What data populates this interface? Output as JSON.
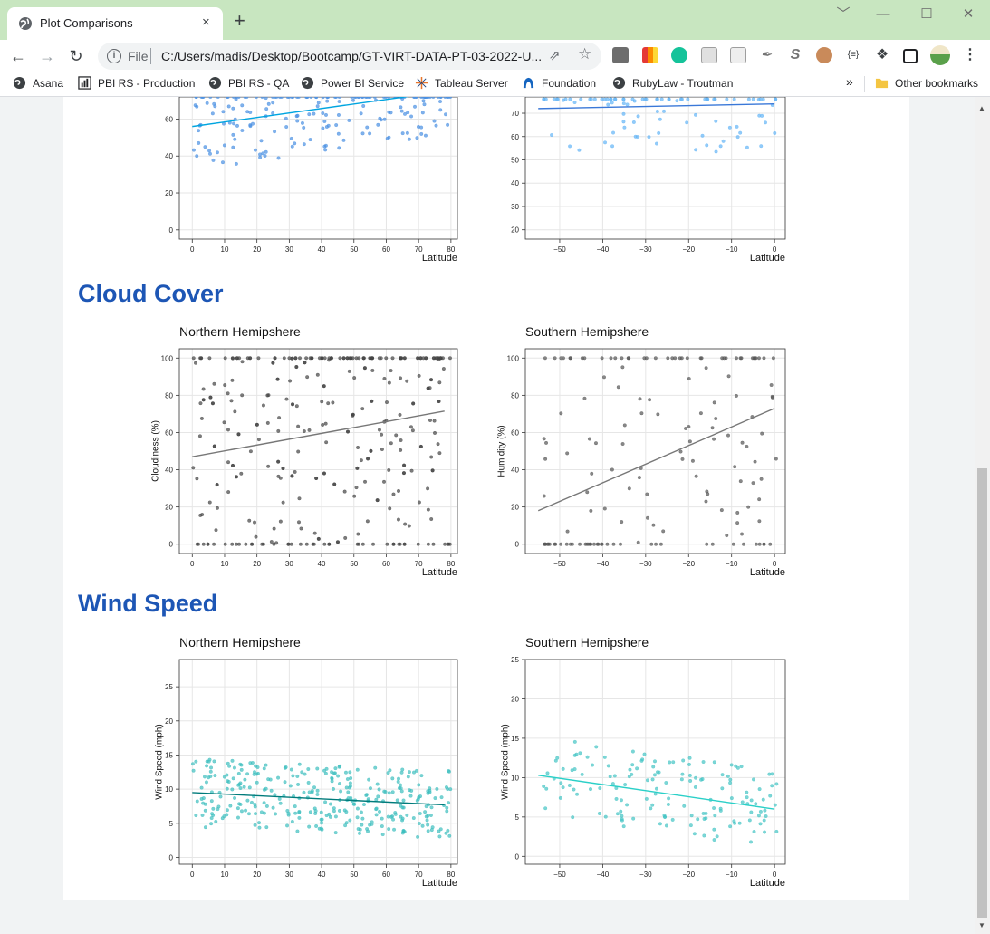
{
  "browser": {
    "tab_title": "Plot Comparisons",
    "tab_close": "×",
    "new_tab": "+",
    "window_controls": [
      "﹀",
      "—",
      "☐",
      "✕"
    ],
    "url_scheme": "File",
    "url": "C:/Users/madis/Desktop/Bootcamp/GT-VIRT-DATA-PT-03-2022-U...",
    "bookmarks": [
      "Asana",
      "PBI RS - Production",
      "PBI RS - QA",
      "Power BI Service",
      "Tableau Server",
      "Foundation",
      "RubyLaw - Troutman"
    ],
    "bookmarks_more": "»",
    "other_bookmarks": "Other bookmarks",
    "icons": [
      "back-icon",
      "forward-icon",
      "reload-icon",
      "info-icon",
      "share-icon",
      "star-icon",
      "extensions-icon",
      "side-panel-icon",
      "menu-icon"
    ]
  },
  "sections": {
    "cloud": "Cloud Cover",
    "wind": "Wind Speed"
  },
  "plot_titles": {
    "cloud_north": "Northern Hemipshere",
    "cloud_south": "Southern Hemipshere",
    "wind_north": "Northern Hemipshere",
    "wind_south": "Southern Hemipshere"
  },
  "chart_data": [
    {
      "id": "humidity_north",
      "type": "scatter",
      "title": "",
      "xlabel": "Latitude",
      "ylabel": "",
      "xlim": [
        -4,
        82
      ],
      "ylim": [
        -5,
        72
      ],
      "xticks": [
        0,
        10,
        20,
        30,
        40,
        50,
        60,
        70,
        80
      ],
      "yticks": [
        0,
        20,
        40,
        60
      ],
      "point_color": "#4a90e2",
      "line_color": "#00a5e0",
      "regression": {
        "x": [
          0,
          78
        ],
        "y": [
          56,
          75
        ]
      },
      "seed": 11,
      "n": 210,
      "ymin": 0,
      "ymax": 72,
      "spread": 24
    },
    {
      "id": "humidity_south",
      "type": "scatter",
      "title": "",
      "xlabel": "Latitude",
      "ylabel": "",
      "xlim": [
        -58,
        2.5
      ],
      "ylim": [
        16,
        77
      ],
      "xticks": [
        -50,
        -40,
        -30,
        -20,
        -10,
        0
      ],
      "yticks": [
        20,
        30,
        40,
        50,
        60,
        70
      ],
      "point_color": "#64b5f6",
      "line_color": "#3a78d8",
      "regression": {
        "x": [
          -55,
          0
        ],
        "y": [
          72,
          74
        ]
      },
      "seed": 23,
      "n": 95,
      "ymin": 18,
      "ymax": 76,
      "spread": 20
    },
    {
      "id": "cloud_north",
      "type": "scatter",
      "title": "Northern Hemipshere",
      "xlabel": "Latitude",
      "ylabel": "Cloudiness (%)",
      "xlim": [
        -4,
        82
      ],
      "ylim": [
        -5,
        105
      ],
      "xticks": [
        0,
        10,
        20,
        30,
        40,
        50,
        60,
        70,
        80
      ],
      "yticks": [
        0,
        20,
        40,
        60,
        80,
        100
      ],
      "point_color": "#444444",
      "line_color": "#777777",
      "regression": {
        "x": [
          0,
          78
        ],
        "y": [
          47,
          71.5
        ]
      },
      "seed": 37,
      "n": 330,
      "ymin": 0,
      "ymax": 100,
      "spread": 60
    },
    {
      "id": "cloud_south",
      "type": "scatter",
      "title": "Southern Hemipshere",
      "xlabel": "Latitude",
      "ylabel": "Humidity (%)",
      "xlim": [
        -58,
        2.5
      ],
      "ylim": [
        -5,
        105
      ],
      "xticks": [
        -50,
        -40,
        -30,
        -20,
        -10,
        0
      ],
      "yticks": [
        0,
        20,
        40,
        60,
        80,
        100
      ],
      "point_color": "#555555",
      "line_color": "#777777",
      "regression": {
        "x": [
          -55,
          0
        ],
        "y": [
          18,
          73
        ]
      },
      "seed": 53,
      "n": 150,
      "ymin": 0,
      "ymax": 100,
      "spread": 60
    },
    {
      "id": "wind_north",
      "type": "scatter",
      "title": "Northern Hemipshere",
      "xlabel": "Latitude",
      "ylabel": "Wind Speed (mph)",
      "xlim": [
        -4,
        82
      ],
      "ylim": [
        -1,
        29
      ],
      "xticks": [
        0,
        10,
        20,
        30,
        40,
        50,
        60,
        70,
        80
      ],
      "yticks": [
        0,
        5,
        10,
        15,
        20,
        25
      ],
      "point_color": "#3fbfbf",
      "line_color": "#007b7b",
      "regression": {
        "x": [
          0,
          78
        ],
        "y": [
          9.5,
          7.7
        ]
      },
      "seed": 71,
      "n": 330,
      "ymin": 0,
      "ymax": 27.5,
      "spread": 5
    },
    {
      "id": "wind_south",
      "type": "scatter",
      "title": "Southern Hemipshere",
      "xlabel": "Latitude",
      "ylabel": "Wind Speed (mph)",
      "xlim": [
        -58,
        2.5
      ],
      "ylim": [
        -1,
        25
      ],
      "xticks": [
        -50,
        -40,
        -30,
        -20,
        -10,
        0
      ],
      "yticks": [
        0,
        5,
        10,
        15,
        20,
        25
      ],
      "point_color": "#44c4c4",
      "line_color": "#2ad0c8",
      "regression": {
        "x": [
          -55,
          0
        ],
        "y": [
          10.3,
          6.0
        ]
      },
      "seed": 89,
      "n": 150,
      "ymin": 0,
      "ymax": 24,
      "spread": 5
    }
  ]
}
